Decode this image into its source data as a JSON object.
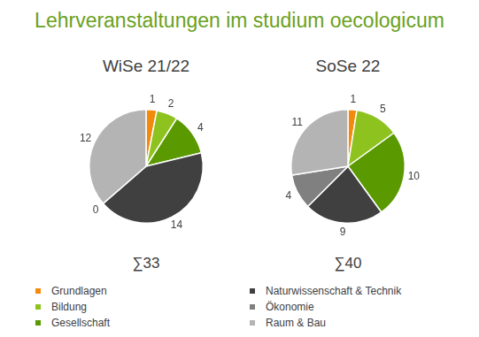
{
  "title": "Lehrveranstaltungen im studium oecologicum",
  "chart_data": [
    {
      "type": "pie",
      "title": "WiSe 21/22",
      "sum_label": "∑33",
      "categories": [
        "Grundlagen",
        "Bildung",
        "Gesellschaft",
        "Naturwissenschaft & Technik",
        "Ökonomie",
        "Raum & Bau"
      ],
      "values": [
        1,
        2,
        4,
        14,
        0,
        12
      ],
      "colors": [
        "#f28a0c",
        "#8ec31f",
        "#5a9a00",
        "#404040",
        "#808080",
        "#b4b4b4"
      ],
      "data_labels": true,
      "legend": "bottom"
    },
    {
      "type": "pie",
      "title": "SoSe 22",
      "sum_label": "∑40",
      "categories": [
        "Grundlagen",
        "Bildung",
        "Gesellschaft",
        "Naturwissenschaft & Technik",
        "Ökonomie",
        "Raum & Bau"
      ],
      "values": [
        1,
        5,
        10,
        9,
        4,
        11
      ],
      "colors": [
        "#f28a0c",
        "#8ec31f",
        "#5a9a00",
        "#404040",
        "#808080",
        "#b4b4b4"
      ],
      "data_labels": true,
      "legend": "bottom"
    }
  ]
}
